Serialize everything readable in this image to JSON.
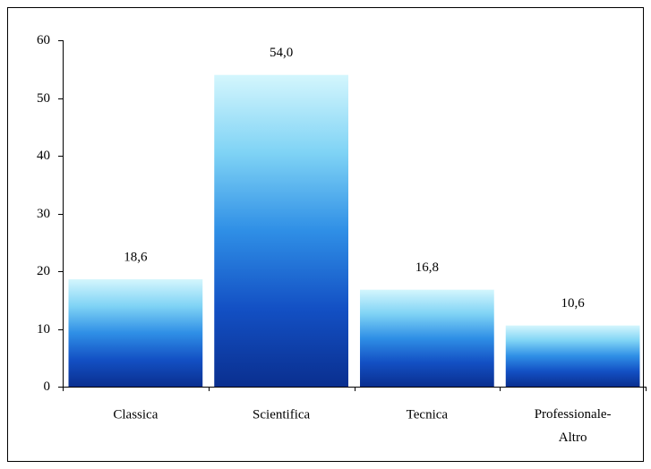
{
  "chart_data": {
    "type": "bar",
    "categories": [
      "Classica",
      "Scientifica",
      "Tecnica",
      "Professionale-Altro"
    ],
    "values": [
      18.6,
      54.0,
      16.8,
      10.6
    ],
    "value_labels": [
      "18,6",
      "54,0",
      "16,8",
      "10,6"
    ],
    "color": "#1a5fd0",
    "ylim": [
      0,
      60
    ],
    "yticks": [
      0,
      10,
      20,
      30,
      40,
      50,
      60
    ],
    "grid": false
  }
}
